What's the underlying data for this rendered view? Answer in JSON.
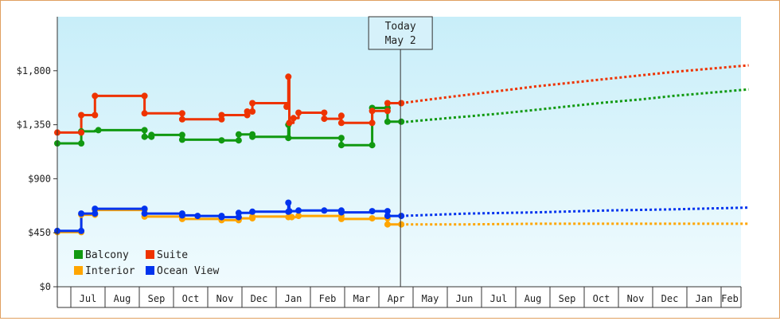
{
  "chart_data": {
    "type": "line",
    "title": "",
    "xlabel": "",
    "ylabel": "",
    "ylim": [
      0,
      2250
    ],
    "y_ticks": [
      {
        "value": 0,
        "label": "$0"
      },
      {
        "value": 450,
        "label": "$450"
      },
      {
        "value": 900,
        "label": "$900"
      },
      {
        "value": 1350,
        "label": "$1,350"
      },
      {
        "value": 1800,
        "label": "$1,800"
      }
    ],
    "x_range": [
      0,
      20.2
    ],
    "month_ticks": [
      "Jul",
      "Aug",
      "Sep",
      "Oct",
      "Nov",
      "Dec",
      "Jan",
      "Feb",
      "Mar",
      "Apr",
      "May",
      "Jun",
      "Jul",
      "Aug",
      "Sep",
      "Oct",
      "Nov",
      "Dec",
      "Jan",
      "Feb"
    ],
    "today_marker": {
      "line1": "Today",
      "line2": "May 2",
      "x": 10.05
    },
    "grid": false,
    "legend_position": "bottom-left",
    "series": [
      {
        "name": "Balcony",
        "color": "#119911",
        "points": [
          [
            0,
            1195
          ],
          [
            0.7,
            1195
          ],
          [
            0.7,
            1295
          ],
          [
            1.1,
            1295
          ],
          [
            1.1,
            1300
          ],
          [
            1.2,
            1300
          ],
          [
            1.2,
            1305
          ],
          [
            2.55,
            1305
          ],
          [
            2.55,
            1250
          ],
          [
            2.75,
            1250
          ],
          [
            2.75,
            1265
          ],
          [
            3.65,
            1265
          ],
          [
            3.65,
            1225
          ],
          [
            4.8,
            1225
          ],
          [
            4.8,
            1220
          ],
          [
            5.3,
            1220
          ],
          [
            5.3,
            1270
          ],
          [
            5.7,
            1270
          ],
          [
            5.7,
            1250
          ],
          [
            6.75,
            1250
          ],
          [
            6.75,
            1350
          ],
          [
            6.78,
            1350
          ],
          [
            6.78,
            1240
          ],
          [
            8.3,
            1240
          ],
          [
            8.3,
            1180
          ],
          [
            9.2,
            1180
          ],
          [
            9.2,
            1490
          ],
          [
            9.65,
            1490
          ],
          [
            9.65,
            1375
          ],
          [
            10.05,
            1375
          ]
        ],
        "forecast": [
          [
            10.05,
            1370
          ],
          [
            11,
            1395
          ],
          [
            12,
            1420
          ],
          [
            13,
            1445
          ],
          [
            14,
            1475
          ],
          [
            15,
            1505
          ],
          [
            16,
            1535
          ],
          [
            17,
            1560
          ],
          [
            18,
            1590
          ],
          [
            19,
            1615
          ],
          [
            20.2,
            1645
          ]
        ]
      },
      {
        "name": "Suite",
        "color": "#ee3300",
        "points": [
          [
            0,
            1285
          ],
          [
            0.7,
            1285
          ],
          [
            0.7,
            1430
          ],
          [
            1.1,
            1430
          ],
          [
            1.1,
            1590
          ],
          [
            2.55,
            1590
          ],
          [
            2.55,
            1445
          ],
          [
            3.65,
            1445
          ],
          [
            3.65,
            1395
          ],
          [
            4.8,
            1395
          ],
          [
            4.8,
            1430
          ],
          [
            5.55,
            1430
          ],
          [
            5.55,
            1460
          ],
          [
            5.7,
            1460
          ],
          [
            5.7,
            1530
          ],
          [
            6.7,
            1530
          ],
          [
            6.7,
            1500
          ],
          [
            6.75,
            1500
          ],
          [
            6.75,
            1750
          ],
          [
            6.78,
            1750
          ],
          [
            6.78,
            1365
          ],
          [
            6.9,
            1365
          ],
          [
            6.9,
            1405
          ],
          [
            7.05,
            1405
          ],
          [
            7.05,
            1450
          ],
          [
            7.8,
            1450
          ],
          [
            7.8,
            1400
          ],
          [
            8.3,
            1400
          ],
          [
            8.3,
            1425
          ],
          [
            8.3,
            1425
          ],
          [
            8.3,
            1365
          ],
          [
            9.2,
            1365
          ],
          [
            9.2,
            1465
          ],
          [
            9.65,
            1465
          ],
          [
            9.65,
            1530
          ],
          [
            10.05,
            1530
          ]
        ],
        "forecast": [
          [
            10.05,
            1530
          ],
          [
            11,
            1565
          ],
          [
            12,
            1600
          ],
          [
            13,
            1635
          ],
          [
            14,
            1670
          ],
          [
            15,
            1700
          ],
          [
            16,
            1730
          ],
          [
            17,
            1760
          ],
          [
            18,
            1790
          ],
          [
            19,
            1815
          ],
          [
            20.2,
            1845
          ]
        ]
      },
      {
        "name": "Interior",
        "color": "#ffa500",
        "points": [
          [
            0,
            455
          ],
          [
            0.7,
            455
          ],
          [
            0.7,
            600
          ],
          [
            1.1,
            600
          ],
          [
            1.1,
            640
          ],
          [
            2.55,
            640
          ],
          [
            2.55,
            585
          ],
          [
            3.65,
            585
          ],
          [
            3.65,
            565
          ],
          [
            4.8,
            565
          ],
          [
            4.8,
            555
          ],
          [
            5.3,
            555
          ],
          [
            5.3,
            570
          ],
          [
            5.7,
            570
          ],
          [
            5.7,
            585
          ],
          [
            6.75,
            585
          ],
          [
            6.75,
            580
          ],
          [
            7.05,
            580
          ],
          [
            7.05,
            590
          ],
          [
            8.3,
            590
          ],
          [
            8.3,
            565
          ],
          [
            9.2,
            565
          ],
          [
            9.2,
            570
          ],
          [
            9.65,
            570
          ],
          [
            9.65,
            520
          ],
          [
            10.05,
            520
          ]
        ],
        "forecast": [
          [
            10.05,
            520
          ],
          [
            12,
            520
          ],
          [
            14,
            525
          ],
          [
            16,
            525
          ],
          [
            18,
            525
          ],
          [
            20.2,
            525
          ]
        ]
      },
      {
        "name": "Ocean View",
        "color": "#0033ee",
        "points": [
          [
            0,
            465
          ],
          [
            0.7,
            465
          ],
          [
            0.7,
            610
          ],
          [
            1.1,
            610
          ],
          [
            1.1,
            650
          ],
          [
            2.55,
            650
          ],
          [
            2.55,
            610
          ],
          [
            3.65,
            610
          ],
          [
            3.65,
            595
          ],
          [
            4.1,
            595
          ],
          [
            4.1,
            590
          ],
          [
            4.8,
            590
          ],
          [
            4.8,
            580
          ],
          [
            5.3,
            580
          ],
          [
            5.3,
            615
          ],
          [
            5.7,
            615
          ],
          [
            5.7,
            625
          ],
          [
            6.75,
            625
          ],
          [
            6.75,
            700
          ],
          [
            6.78,
            700
          ],
          [
            6.78,
            630
          ],
          [
            7.05,
            630
          ],
          [
            7.05,
            635
          ],
          [
            8.3,
            635
          ],
          [
            8.3,
            620
          ],
          [
            9.2,
            620
          ],
          [
            9.2,
            630
          ],
          [
            9.65,
            630
          ],
          [
            9.65,
            590
          ],
          [
            10.05,
            590
          ]
        ],
        "forecast": [
          [
            10.05,
            590
          ],
          [
            12,
            610
          ],
          [
            14,
            620
          ],
          [
            16,
            635
          ],
          [
            18,
            645
          ],
          [
            20.2,
            660
          ]
        ]
      }
    ],
    "markers": {
      "Balcony": [
        [
          0,
          1195
        ],
        [
          0.7,
          1195
        ],
        [
          0.7,
          1295
        ],
        [
          1.2,
          1305
        ],
        [
          2.55,
          1305
        ],
        [
          2.55,
          1250
        ],
        [
          2.75,
          1250
        ],
        [
          2.75,
          1265
        ],
        [
          3.65,
          1265
        ],
        [
          3.65,
          1225
        ],
        [
          4.8,
          1220
        ],
        [
          5.3,
          1220
        ],
        [
          5.3,
          1270
        ],
        [
          5.7,
          1270
        ],
        [
          5.7,
          1250
        ],
        [
          6.75,
          1240
        ],
        [
          6.75,
          1350
        ],
        [
          8.3,
          1240
        ],
        [
          8.3,
          1180
        ],
        [
          9.2,
          1180
        ],
        [
          9.2,
          1490
        ],
        [
          9.65,
          1490
        ],
        [
          9.65,
          1375
        ],
        [
          10.05,
          1375
        ]
      ],
      "Suite": [
        [
          0,
          1285
        ],
        [
          0.7,
          1285
        ],
        [
          0.7,
          1430
        ],
        [
          1.1,
          1430
        ],
        [
          1.1,
          1590
        ],
        [
          2.55,
          1590
        ],
        [
          2.55,
          1445
        ],
        [
          3.65,
          1445
        ],
        [
          3.65,
          1395
        ],
        [
          4.8,
          1395
        ],
        [
          4.8,
          1430
        ],
        [
          5.55,
          1430
        ],
        [
          5.55,
          1460
        ],
        [
          5.7,
          1460
        ],
        [
          5.7,
          1530
        ],
        [
          6.7,
          1500
        ],
        [
          6.75,
          1750
        ],
        [
          6.78,
          1365
        ],
        [
          6.9,
          1405
        ],
        [
          7.05,
          1450
        ],
        [
          7.8,
          1450
        ],
        [
          7.8,
          1400
        ],
        [
          8.3,
          1425
        ],
        [
          8.3,
          1365
        ],
        [
          9.2,
          1365
        ],
        [
          9.2,
          1465
        ],
        [
          9.65,
          1465
        ],
        [
          9.65,
          1530
        ],
        [
          10.05,
          1530
        ]
      ],
      "Interior": [
        [
          0,
          455
        ],
        [
          0.7,
          455
        ],
        [
          0.7,
          600
        ],
        [
          1.1,
          600
        ],
        [
          1.1,
          640
        ],
        [
          2.55,
          640
        ],
        [
          2.55,
          585
        ],
        [
          3.65,
          585
        ],
        [
          3.65,
          565
        ],
        [
          4.8,
          555
        ],
        [
          5.3,
          555
        ],
        [
          5.3,
          570
        ],
        [
          5.7,
          570
        ],
        [
          5.7,
          585
        ],
        [
          6.75,
          580
        ],
        [
          6.85,
          580
        ],
        [
          7.05,
          590
        ],
        [
          8.3,
          590
        ],
        [
          8.3,
          565
        ],
        [
          9.2,
          570
        ],
        [
          9.65,
          570
        ],
        [
          9.65,
          520
        ],
        [
          10.05,
          520
        ]
      ],
      "Ocean View": [
        [
          0,
          465
        ],
        [
          0.7,
          465
        ],
        [
          0.7,
          610
        ],
        [
          1.1,
          610
        ],
        [
          1.1,
          650
        ],
        [
          2.55,
          650
        ],
        [
          2.55,
          610
        ],
        [
          3.65,
          610
        ],
        [
          3.65,
          595
        ],
        [
          4.1,
          590
        ],
        [
          4.8,
          590
        ],
        [
          4.8,
          580
        ],
        [
          5.3,
          580
        ],
        [
          5.3,
          615
        ],
        [
          5.7,
          625
        ],
        [
          6.75,
          625
        ],
        [
          6.75,
          700
        ],
        [
          6.78,
          630
        ],
        [
          7.05,
          635
        ],
        [
          7.8,
          635
        ],
        [
          8.3,
          635
        ],
        [
          8.3,
          620
        ],
        [
          9.2,
          630
        ],
        [
          9.65,
          630
        ],
        [
          9.65,
          590
        ],
        [
          10.05,
          590
        ]
      ]
    }
  }
}
